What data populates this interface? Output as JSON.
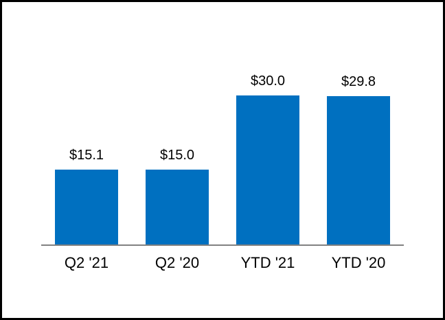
{
  "chart_data": {
    "type": "bar",
    "categories": [
      "Q2 '21",
      "Q2 '20",
      "YTD '21",
      "YTD '20"
    ],
    "values": [
      15.1,
      15.0,
      30.0,
      29.8
    ],
    "value_labels": [
      "$15.1",
      "$15.0",
      "$30.0",
      "$29.8"
    ],
    "title": "",
    "xlabel": "",
    "ylabel": "",
    "ylim": [
      0,
      30
    ],
    "grid": false,
    "legend": false,
    "bar_color": "#0070C0",
    "baseline_color": "#808080",
    "label_color": "#000000",
    "background_color": "#FFFFFF",
    "border_color": "#000000"
  }
}
